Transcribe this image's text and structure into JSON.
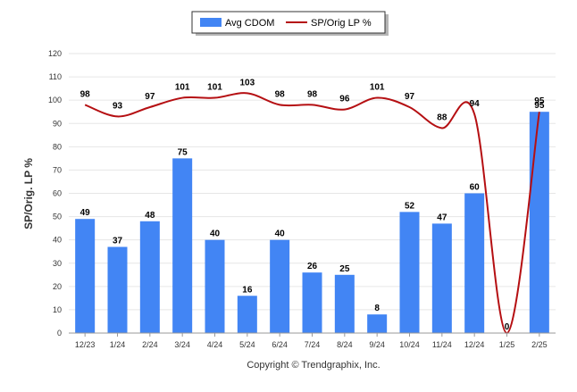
{
  "chart_data": {
    "type": "bar",
    "categories": [
      "12/23",
      "1/24",
      "2/24",
      "3/24",
      "4/24",
      "5/24",
      "6/24",
      "7/24",
      "8/24",
      "9/24",
      "10/24",
      "11/24",
      "12/24",
      "1/25",
      "2/25"
    ],
    "series": [
      {
        "name": "Avg CDOM",
        "type": "bar",
        "color": "#4285f4",
        "values": [
          49,
          37,
          48,
          75,
          40,
          16,
          40,
          26,
          25,
          8,
          52,
          47,
          60,
          0,
          95
        ]
      },
      {
        "name": "SP/Orig LP %",
        "type": "line",
        "color": "#b50f12",
        "values": [
          98,
          93,
          97,
          101,
          101,
          103,
          98,
          98,
          96,
          101,
          97,
          88,
          94,
          0,
          95
        ]
      }
    ],
    "ylabel": "SP/Orig. LP %",
    "ylim": [
      0,
      120
    ],
    "yticks": [
      0,
      10,
      20,
      30,
      40,
      50,
      60,
      70,
      80,
      90,
      100,
      110,
      120
    ],
    "grid": true,
    "legend_position": "top-center"
  },
  "footer": {
    "copyright": "Copyright © Trendgraphix, Inc."
  }
}
